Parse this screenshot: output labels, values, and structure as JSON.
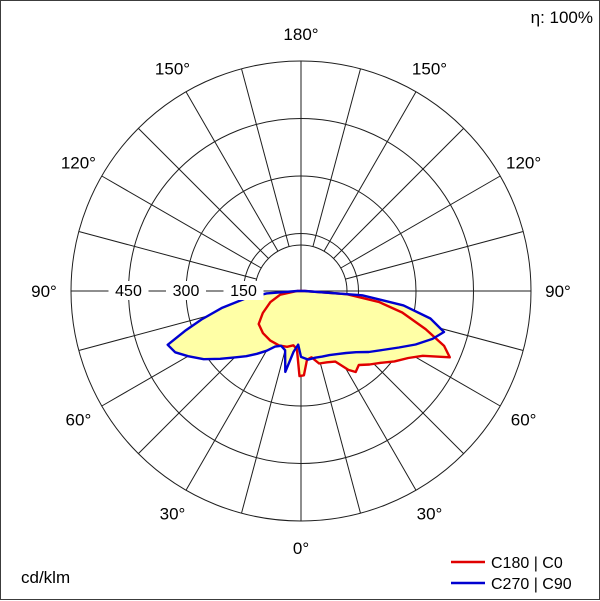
{
  "header": {
    "efficiency": "η: 100%"
  },
  "footer": {
    "unit": "cd/klm"
  },
  "legend": [
    {
      "id": "c180-c0",
      "label": "C180 | C0",
      "color": "#e00000"
    },
    {
      "id": "c270-c90",
      "label": "C270 | C90",
      "color": "#0000d0"
    }
  ],
  "chart_data": {
    "type": "polar-photometric",
    "unit": "cd/klm",
    "efficiency_percent": 100,
    "orientation": "0 deg at bottom (nadir), 90 deg horizontal, 180 deg at top",
    "max_value": 600,
    "ring_values": [
      150,
      300,
      450,
      600
    ],
    "ring_labels": [
      450,
      300,
      150
    ],
    "angle_labels_deg": [
      0,
      30,
      60,
      90,
      120,
      150,
      180
    ],
    "grid": {
      "spoke_step_deg": 15,
      "inner_circle_value": 120
    },
    "fill_color": "#ffffa6",
    "series": [
      {
        "id": "c180-c0",
        "name": "C180 | C0",
        "color": "#e00000",
        "points": [
          [
            -90,
            10
          ],
          [
            -80,
            55
          ],
          [
            -70,
            85
          ],
          [
            -60,
            115
          ],
          [
            -52,
            140
          ],
          [
            -42,
            148
          ],
          [
            -32,
            152
          ],
          [
            -22,
            153
          ],
          [
            -14,
            150
          ],
          [
            -8,
            143
          ],
          [
            -4,
            152
          ],
          [
            -1,
            222
          ],
          [
            2,
            220
          ],
          [
            5,
            180
          ],
          [
            9,
            175
          ],
          [
            14,
            195
          ],
          [
            20,
            198
          ],
          [
            26,
            205
          ],
          [
            31,
            240
          ],
          [
            34,
            255
          ],
          [
            38,
            245
          ],
          [
            43,
            262
          ],
          [
            48,
            280
          ],
          [
            53,
            305
          ],
          [
            58,
            330
          ],
          [
            62,
            360
          ],
          [
            66,
            425
          ],
          [
            69,
            400
          ],
          [
            73,
            340
          ],
          [
            78,
            270
          ],
          [
            82,
            205
          ],
          [
            86,
            120
          ],
          [
            90,
            10
          ]
        ]
      },
      {
        "id": "c270-c90",
        "name": "C270 | C90",
        "color": "#0000d0",
        "points": [
          [
            -90,
            10
          ],
          [
            -86,
            90
          ],
          [
            -82,
            150
          ],
          [
            -78,
            210
          ],
          [
            -74,
            270
          ],
          [
            -71,
            320
          ],
          [
            -68,
            375
          ],
          [
            -64,
            365
          ],
          [
            -60,
            340
          ],
          [
            -55,
            310
          ],
          [
            -50,
            275
          ],
          [
            -45,
            245
          ],
          [
            -40,
            222
          ],
          [
            -35,
            200
          ],
          [
            -30,
            180
          ],
          [
            -25,
            160
          ],
          [
            -20,
            152
          ],
          [
            -15,
            160
          ],
          [
            -11,
            215
          ],
          [
            -7,
            160
          ],
          [
            -3,
            140
          ],
          [
            0,
            172
          ],
          [
            6,
            180
          ],
          [
            12,
            178
          ],
          [
            18,
            180
          ],
          [
            24,
            183
          ],
          [
            30,
            190
          ],
          [
            36,
            200
          ],
          [
            42,
            215
          ],
          [
            48,
            238
          ],
          [
            54,
            262
          ],
          [
            60,
            295
          ],
          [
            65,
            330
          ],
          [
            70,
            365
          ],
          [
            74,
            388
          ],
          [
            78,
            345
          ],
          [
            82,
            270
          ],
          [
            86,
            160
          ],
          [
            90,
            10
          ]
        ]
      }
    ]
  }
}
